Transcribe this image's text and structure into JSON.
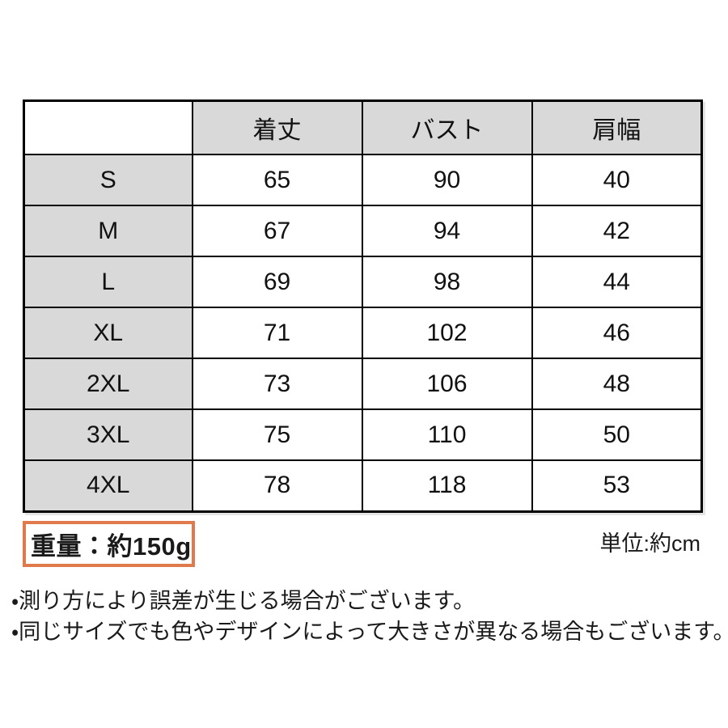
{
  "table": {
    "header": [
      "",
      "着丈",
      "バスト",
      "肩幅"
    ],
    "rows": [
      [
        "S",
        "65",
        "90",
        "40"
      ],
      [
        "M",
        "67",
        "94",
        "42"
      ],
      [
        "L",
        "69",
        "98",
        "44"
      ],
      [
        "XL",
        "71",
        "102",
        "46"
      ],
      [
        "2XL",
        "73",
        "106",
        "48"
      ],
      [
        "3XL",
        "75",
        "110",
        "50"
      ],
      [
        "4XL",
        "78",
        "118",
        "53"
      ]
    ]
  },
  "chart_data": {
    "type": "table",
    "columns": [
      "",
      "着丈",
      "バスト",
      "肩幅"
    ],
    "rows": [
      [
        "S",
        65,
        90,
        40
      ],
      [
        "M",
        67,
        94,
        42
      ],
      [
        "L",
        69,
        98,
        44
      ],
      [
        "XL",
        71,
        102,
        46
      ],
      [
        "2XL",
        73,
        106,
        48
      ],
      [
        "3XL",
        75,
        110,
        50
      ],
      [
        "4XL",
        78,
        118,
        53
      ]
    ],
    "unit": "約cm",
    "weight": "約150g"
  },
  "footer": {
    "weight_label": "重量：約150g",
    "unit_label": "単位:約cm"
  },
  "notes": [
    "・測り方により誤差が生じる場合がございます。",
    "・同じサイズでも色やデザインによって大きさが異なる場合もございます。"
  ],
  "colors": {
    "header_bg": "#d9d9d9",
    "table_border": "#000000",
    "weight_box_border": "#e0794b",
    "text": "#111111",
    "background": "#ffffff"
  }
}
